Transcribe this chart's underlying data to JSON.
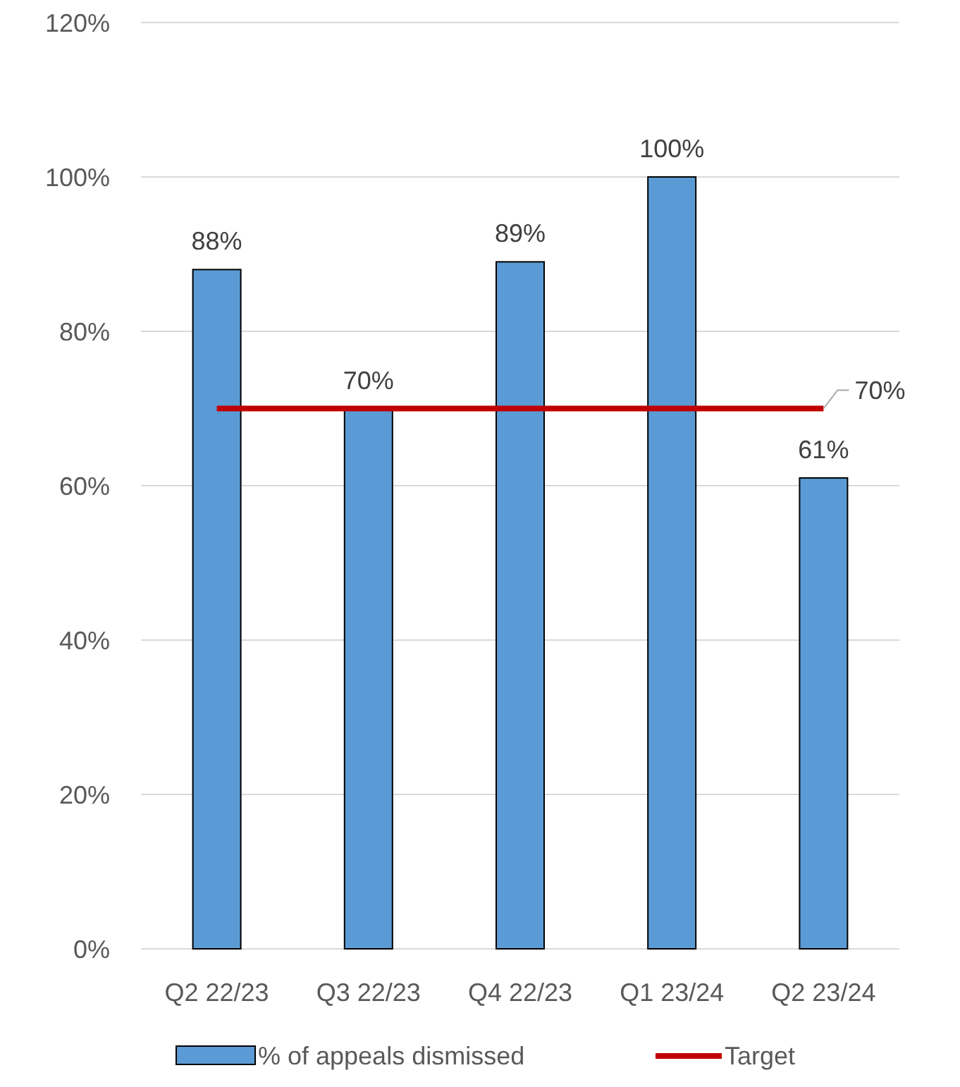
{
  "chart_data": {
    "type": "bar",
    "categories": [
      "Q2 22/23",
      "Q3 22/23",
      "Q4 22/23",
      "Q1 23/24",
      "Q2 23/24"
    ],
    "series": [
      {
        "name": "% of appeals dismissed",
        "color": "#5b9bd5",
        "values": [
          88,
          70,
          89,
          100,
          61
        ],
        "value_labels": [
          "88%",
          "70%",
          "89%",
          "100%",
          "61%"
        ]
      },
      {
        "name": "Target",
        "type": "line",
        "color": "#c00000",
        "values": [
          70,
          70,
          70,
          70,
          70
        ],
        "value_labels": [
          null,
          null,
          null,
          null,
          "70%"
        ]
      }
    ],
    "ylim": [
      0,
      120
    ],
    "yticks": [
      {
        "value": 0,
        "label": "0%"
      },
      {
        "value": 20,
        "label": "20%"
      },
      {
        "value": 40,
        "label": "40%"
      },
      {
        "value": 60,
        "label": "60%"
      },
      {
        "value": 80,
        "label": "80%"
      },
      {
        "value": 100,
        "label": "100%"
      },
      {
        "value": 120,
        "label": "120%"
      }
    ],
    "grid": "y",
    "legend": "bottom",
    "marker": "none",
    "line_style": "solid"
  }
}
